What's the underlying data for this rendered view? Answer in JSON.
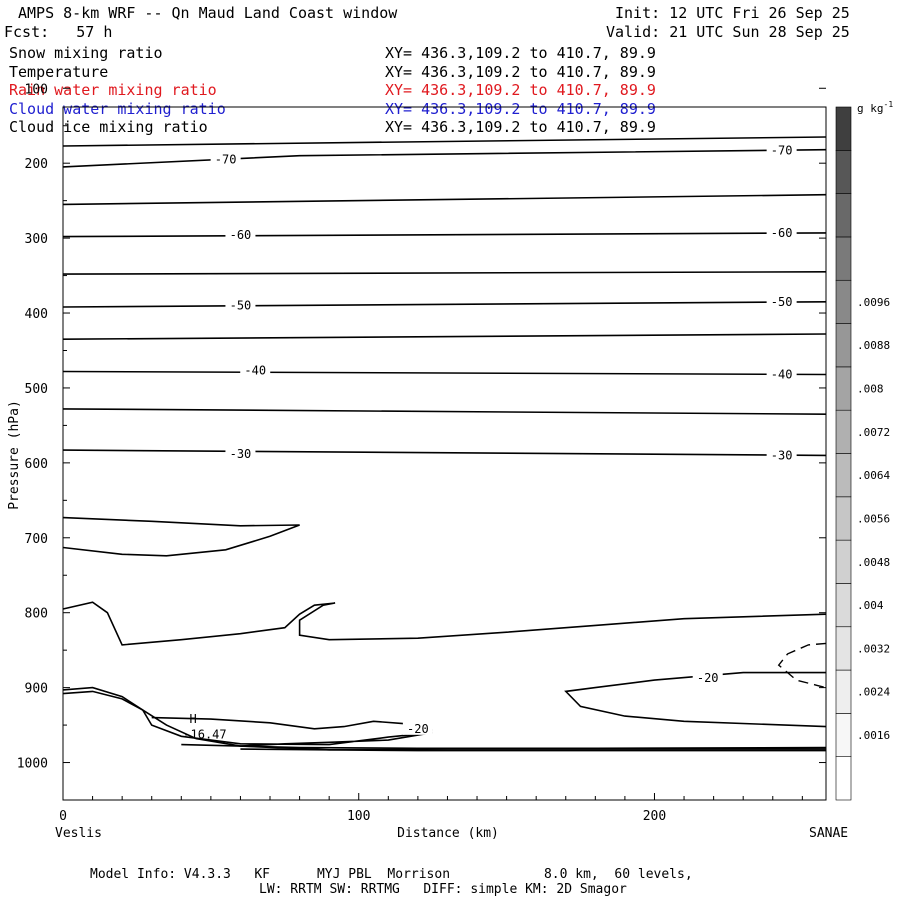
{
  "header": {
    "title": "AMPS 8-km WRF -- Qn Maud Land Coast window",
    "fcst_label": "Fcst:",
    "fcst_value": "57 h",
    "init": "Init: 12 UTC Fri 26 Sep 25",
    "valid": "Valid: 21 UTC Sun 28 Sep 25"
  },
  "fields": [
    {
      "name": "Snow mixing ratio",
      "xy": "XY= 436.3,109.2 to 410.7, 89.9",
      "color": "#000000"
    },
    {
      "name": "Temperature",
      "xy": "XY= 436.3,109.2 to 410.7, 89.9",
      "color": "#000000"
    },
    {
      "name": "Rain water mixing ratio",
      "xy": "XY= 436.3,109.2 to 410.7, 89.9",
      "color": "#e0191f"
    },
    {
      "name": "Cloud water mixing ratio",
      "xy": "XY= 436.3,109.2 to 410.7, 89.9",
      "color": "#2020d0"
    },
    {
      "name": "Cloud ice mixing ratio",
      "xy": "XY= 436.3,109.2 to 410.7, 89.9",
      "color": "#000000"
    }
  ],
  "footer": {
    "line1": "Model Info: V4.3.3   KF      MYJ PBL  Morrison            8.0 km,  60 levels,",
    "line2": "LW: RRTM SW: RRTMG   DIFF: simple KM: 2D Smagor"
  },
  "chart_data": {
    "type": "cross-section contour",
    "xlabel": "Distance (km)",
    "ylabel": "Pressure (hPa)",
    "x_ticks": [
      0,
      100,
      200
    ],
    "y_ticks": [
      100,
      200,
      300,
      400,
      500,
      600,
      700,
      800,
      900,
      1000
    ],
    "xlim": [
      0,
      258
    ],
    "ylim": [
      1050,
      125
    ],
    "y_scale": "linear, inverted",
    "x_endpoints": {
      "left": "Veslis",
      "right": "SANAE"
    },
    "colorbar": {
      "unit_text": "g kg",
      "unit_exp": "-1",
      "ticks": [
        ".0016",
        ".0024",
        ".0032",
        ".004",
        ".0048",
        ".0056",
        ".0064",
        ".0072",
        ".008",
        ".0088",
        ".0096"
      ],
      "shades": [
        "#ffffff",
        "#f7f7f7",
        "#eeeeee",
        "#e4e4e4",
        "#dadada",
        "#d0d0d0",
        "#c6c6c6",
        "#bbbbbb",
        "#b0b0b0",
        "#a4a4a4",
        "#979797",
        "#898989",
        "#7a7a7a",
        "#696969",
        "#575757",
        "#3f3f3f"
      ]
    },
    "isotherms": [
      {
        "label": "-70",
        "points": [
          [
            0,
            205
          ],
          [
            80,
            190
          ],
          [
            258,
            182
          ]
        ],
        "label_at": [
          [
            55,
            195
          ],
          [
            243,
            183
          ]
        ]
      },
      {
        "label": "",
        "points": [
          [
            0,
            177
          ],
          [
            258,
            165
          ]
        ]
      },
      {
        "label": "",
        "points": [
          [
            0,
            255
          ],
          [
            258,
            242
          ]
        ]
      },
      {
        "label": "-60",
        "points": [
          [
            0,
            298
          ],
          [
            258,
            293
          ]
        ],
        "label_at": [
          [
            60,
            296
          ],
          [
            243,
            293
          ]
        ]
      },
      {
        "label": "",
        "points": [
          [
            0,
            348
          ],
          [
            258,
            345
          ]
        ]
      },
      {
        "label": "-50",
        "points": [
          [
            0,
            392
          ],
          [
            258,
            385
          ]
        ],
        "label_at": [
          [
            60,
            390
          ],
          [
            243,
            385
          ]
        ]
      },
      {
        "label": "",
        "points": [
          [
            0,
            435
          ],
          [
            258,
            428
          ]
        ]
      },
      {
        "label": "-40",
        "points": [
          [
            0,
            478
          ],
          [
            258,
            482
          ]
        ],
        "label_at": [
          [
            65,
            477
          ],
          [
            243,
            482
          ]
        ]
      },
      {
        "label": "",
        "points": [
          [
            0,
            528
          ],
          [
            258,
            535
          ]
        ]
      },
      {
        "label": "-30",
        "points": [
          [
            0,
            583
          ],
          [
            258,
            590
          ]
        ],
        "label_at": [
          [
            60,
            588
          ],
          [
            243,
            590
          ]
        ]
      },
      {
        "label": "",
        "points": [
          [
            0,
            673
          ],
          [
            30,
            678
          ],
          [
            60,
            684
          ],
          [
            80,
            683
          ],
          [
            70,
            698
          ],
          [
            55,
            716
          ],
          [
            35,
            724
          ],
          [
            20,
            722
          ],
          [
            0,
            713
          ]
        ]
      },
      {
        "label": "",
        "points": [
          [
            0,
            795
          ],
          [
            10,
            786
          ],
          [
            15,
            800
          ],
          [
            20,
            843
          ],
          [
            40,
            836
          ],
          [
            60,
            828
          ],
          [
            75,
            820
          ],
          [
            80,
            802
          ],
          [
            85,
            790
          ],
          [
            92,
            787
          ],
          [
            88,
            790
          ],
          [
            80,
            810
          ],
          [
            80,
            830
          ],
          [
            90,
            836
          ],
          [
            120,
            834
          ],
          [
            150,
            826
          ],
          [
            180,
            817
          ],
          [
            210,
            808
          ],
          [
            258,
            802
          ]
        ]
      },
      {
        "label": "-20",
        "points": [
          [
            258,
            880
          ],
          [
            230,
            880
          ],
          [
            200,
            890
          ],
          [
            180,
            900
          ],
          [
            170,
            905
          ],
          [
            175,
            925
          ],
          [
            190,
            938
          ],
          [
            210,
            945
          ],
          [
            258,
            952
          ]
        ],
        "label_at": [
          [
            218,
            887
          ]
        ]
      },
      {
        "label": "-20",
        "points": [
          [
            0,
            908
          ],
          [
            10,
            905
          ],
          [
            20,
            915
          ],
          [
            27,
            930
          ],
          [
            30,
            950
          ],
          [
            40,
            965
          ],
          [
            60,
            975
          ],
          [
            90,
            976
          ],
          [
            110,
            966
          ],
          [
            125,
            960
          ],
          [
            110,
            970
          ],
          [
            90,
            973
          ],
          [
            75,
            975
          ],
          [
            60,
            978
          ]
        ],
        "label_at": [
          [
            120,
            955
          ]
        ]
      },
      {
        "label": "",
        "points": [
          [
            30,
            940
          ],
          [
            50,
            942
          ],
          [
            70,
            947
          ],
          [
            85,
            955
          ],
          [
            95,
            952
          ],
          [
            105,
            945
          ],
          [
            115,
            948
          ],
          [
            125,
            957
          ]
        ]
      },
      {
        "label": "",
        "points": [
          [
            0,
            903
          ],
          [
            10,
            900
          ],
          [
            20,
            912
          ],
          [
            27,
            930
          ],
          [
            35,
            950
          ],
          [
            45,
            968
          ],
          [
            60,
            978
          ],
          [
            90,
            983
          ],
          [
            130,
            982
          ],
          [
            200,
            982
          ],
          [
            258,
            982
          ]
        ]
      },
      {
        "label": "",
        "points": [
          [
            40,
            976
          ],
          [
            80,
            980
          ],
          [
            120,
            981
          ],
          [
            180,
            981
          ],
          [
            258,
            980
          ]
        ]
      },
      {
        "label": "",
        "points": [
          [
            60,
            982
          ],
          [
            120,
            984
          ],
          [
            200,
            984
          ],
          [
            258,
            984
          ]
        ]
      }
    ],
    "dashed_contours": [
      {
        "points": [
          [
            258,
            841
          ],
          [
            252,
            843
          ],
          [
            245,
            855
          ],
          [
            242,
            870
          ],
          [
            248,
            890
          ],
          [
            255,
            897
          ],
          [
            258,
            900
          ]
        ]
      }
    ],
    "marks": [
      {
        "type": "high",
        "text": "H",
        "at": [
          44,
          947
        ]
      },
      {
        "type": "value",
        "text": "-16.47",
        "at": [
          48,
          968
        ]
      }
    ]
  }
}
